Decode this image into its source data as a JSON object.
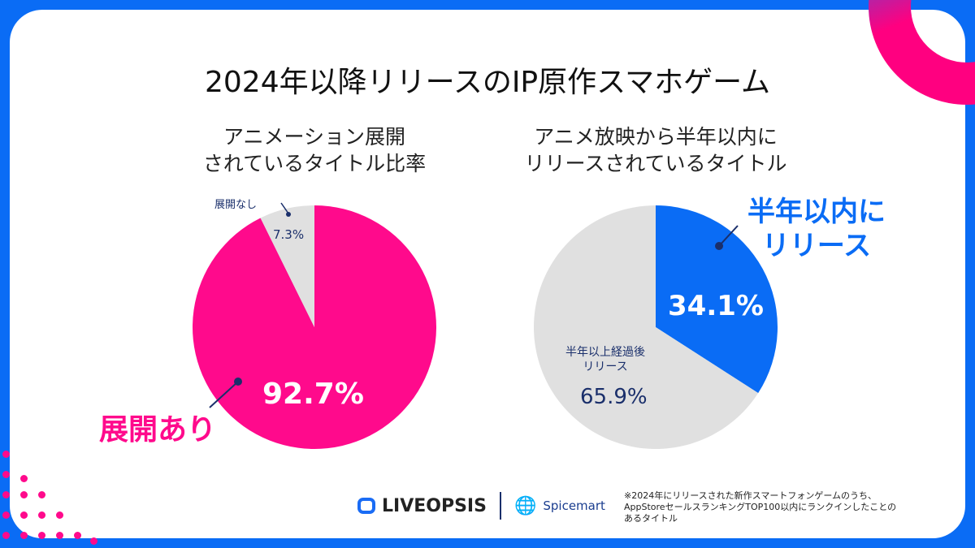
{
  "title": "2024年以降リリースのIP原作スマホゲーム",
  "chart_data": [
    {
      "type": "pie",
      "title": "アニメーション展開\nされているタイトル比率",
      "slices": [
        {
          "label": "展開あり",
          "value": 92.7,
          "value_label": "92.7%",
          "color": "#ff0a8c"
        },
        {
          "label": "展開なし",
          "value": 7.3,
          "value_label": "7.3%",
          "color": "#e0e0e0"
        }
      ]
    },
    {
      "type": "pie",
      "title": "アニメ放映から半年以内に\nリリースされているタイトル",
      "slices": [
        {
          "label": "半年以内に\nリリース",
          "value": 34.1,
          "value_label": "34.1%",
          "color": "#0a6cf5"
        },
        {
          "label": "半年以上経過後\nリリース",
          "value": 65.9,
          "value_label": "65.9%",
          "color": "#e0e0e0"
        }
      ]
    }
  ],
  "footnote": "※2024年にリリースされた新作スマートフォンゲームのうち、\nAppStoreセールスランキングTOP100以内にランクインしたことの\nあるタイトル",
  "logos": {
    "liveopsis": "LIVEOPSIS",
    "spicemart": "Spicemart"
  }
}
